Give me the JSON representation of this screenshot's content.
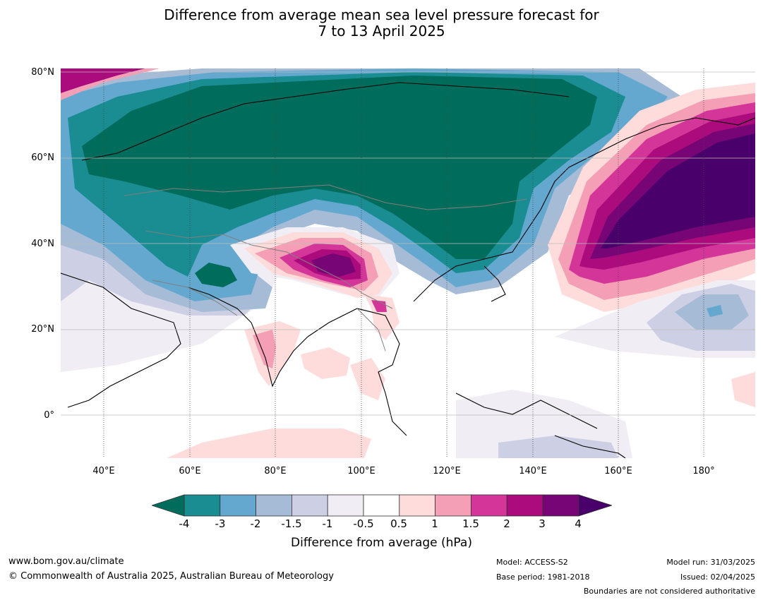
{
  "title_line1": "Difference from average mean sea level pressure forecast for",
  "title_line2": "7 to 13 April 2025",
  "lat_labels": [
    "80°N",
    "60°N",
    "40°N",
    "20°N",
    "0°"
  ],
  "lon_labels": [
    "40°E",
    "60°E",
    "80°E",
    "100°E",
    "120°E",
    "140°E",
    "160°E",
    "180°"
  ],
  "colorbar": {
    "ticks": [
      "-4",
      "-3",
      "-2",
      "-1.5",
      "-1",
      "-0.5",
      "0.5",
      "1",
      "1.5",
      "2",
      "3",
      "4"
    ],
    "colors": [
      "#1a8d93",
      "#64a8cf",
      "#a5bbd6",
      "#cdd0e4",
      "#f1edf4",
      "#ffffff",
      "#fddcdb",
      "#f59fb7",
      "#d43599",
      "#ab0b7c",
      "#780576"
    ],
    "under_color": "#006d5c",
    "over_color": "#49006a",
    "label": "Difference from average (hPa)"
  },
  "footer": {
    "website": "www.bom.gov.au/climate",
    "copyright": "© Commonwealth of Australia 2025, Australian Bureau of Meteorology",
    "model": "Model: ACCESS-S2",
    "base_period": "Base period: 1981-2018",
    "model_run": "Model run: 31/03/2025",
    "issued": "Issued: 02/04/2025",
    "disclaimer": "Boundaries are not considered authoritative"
  }
}
